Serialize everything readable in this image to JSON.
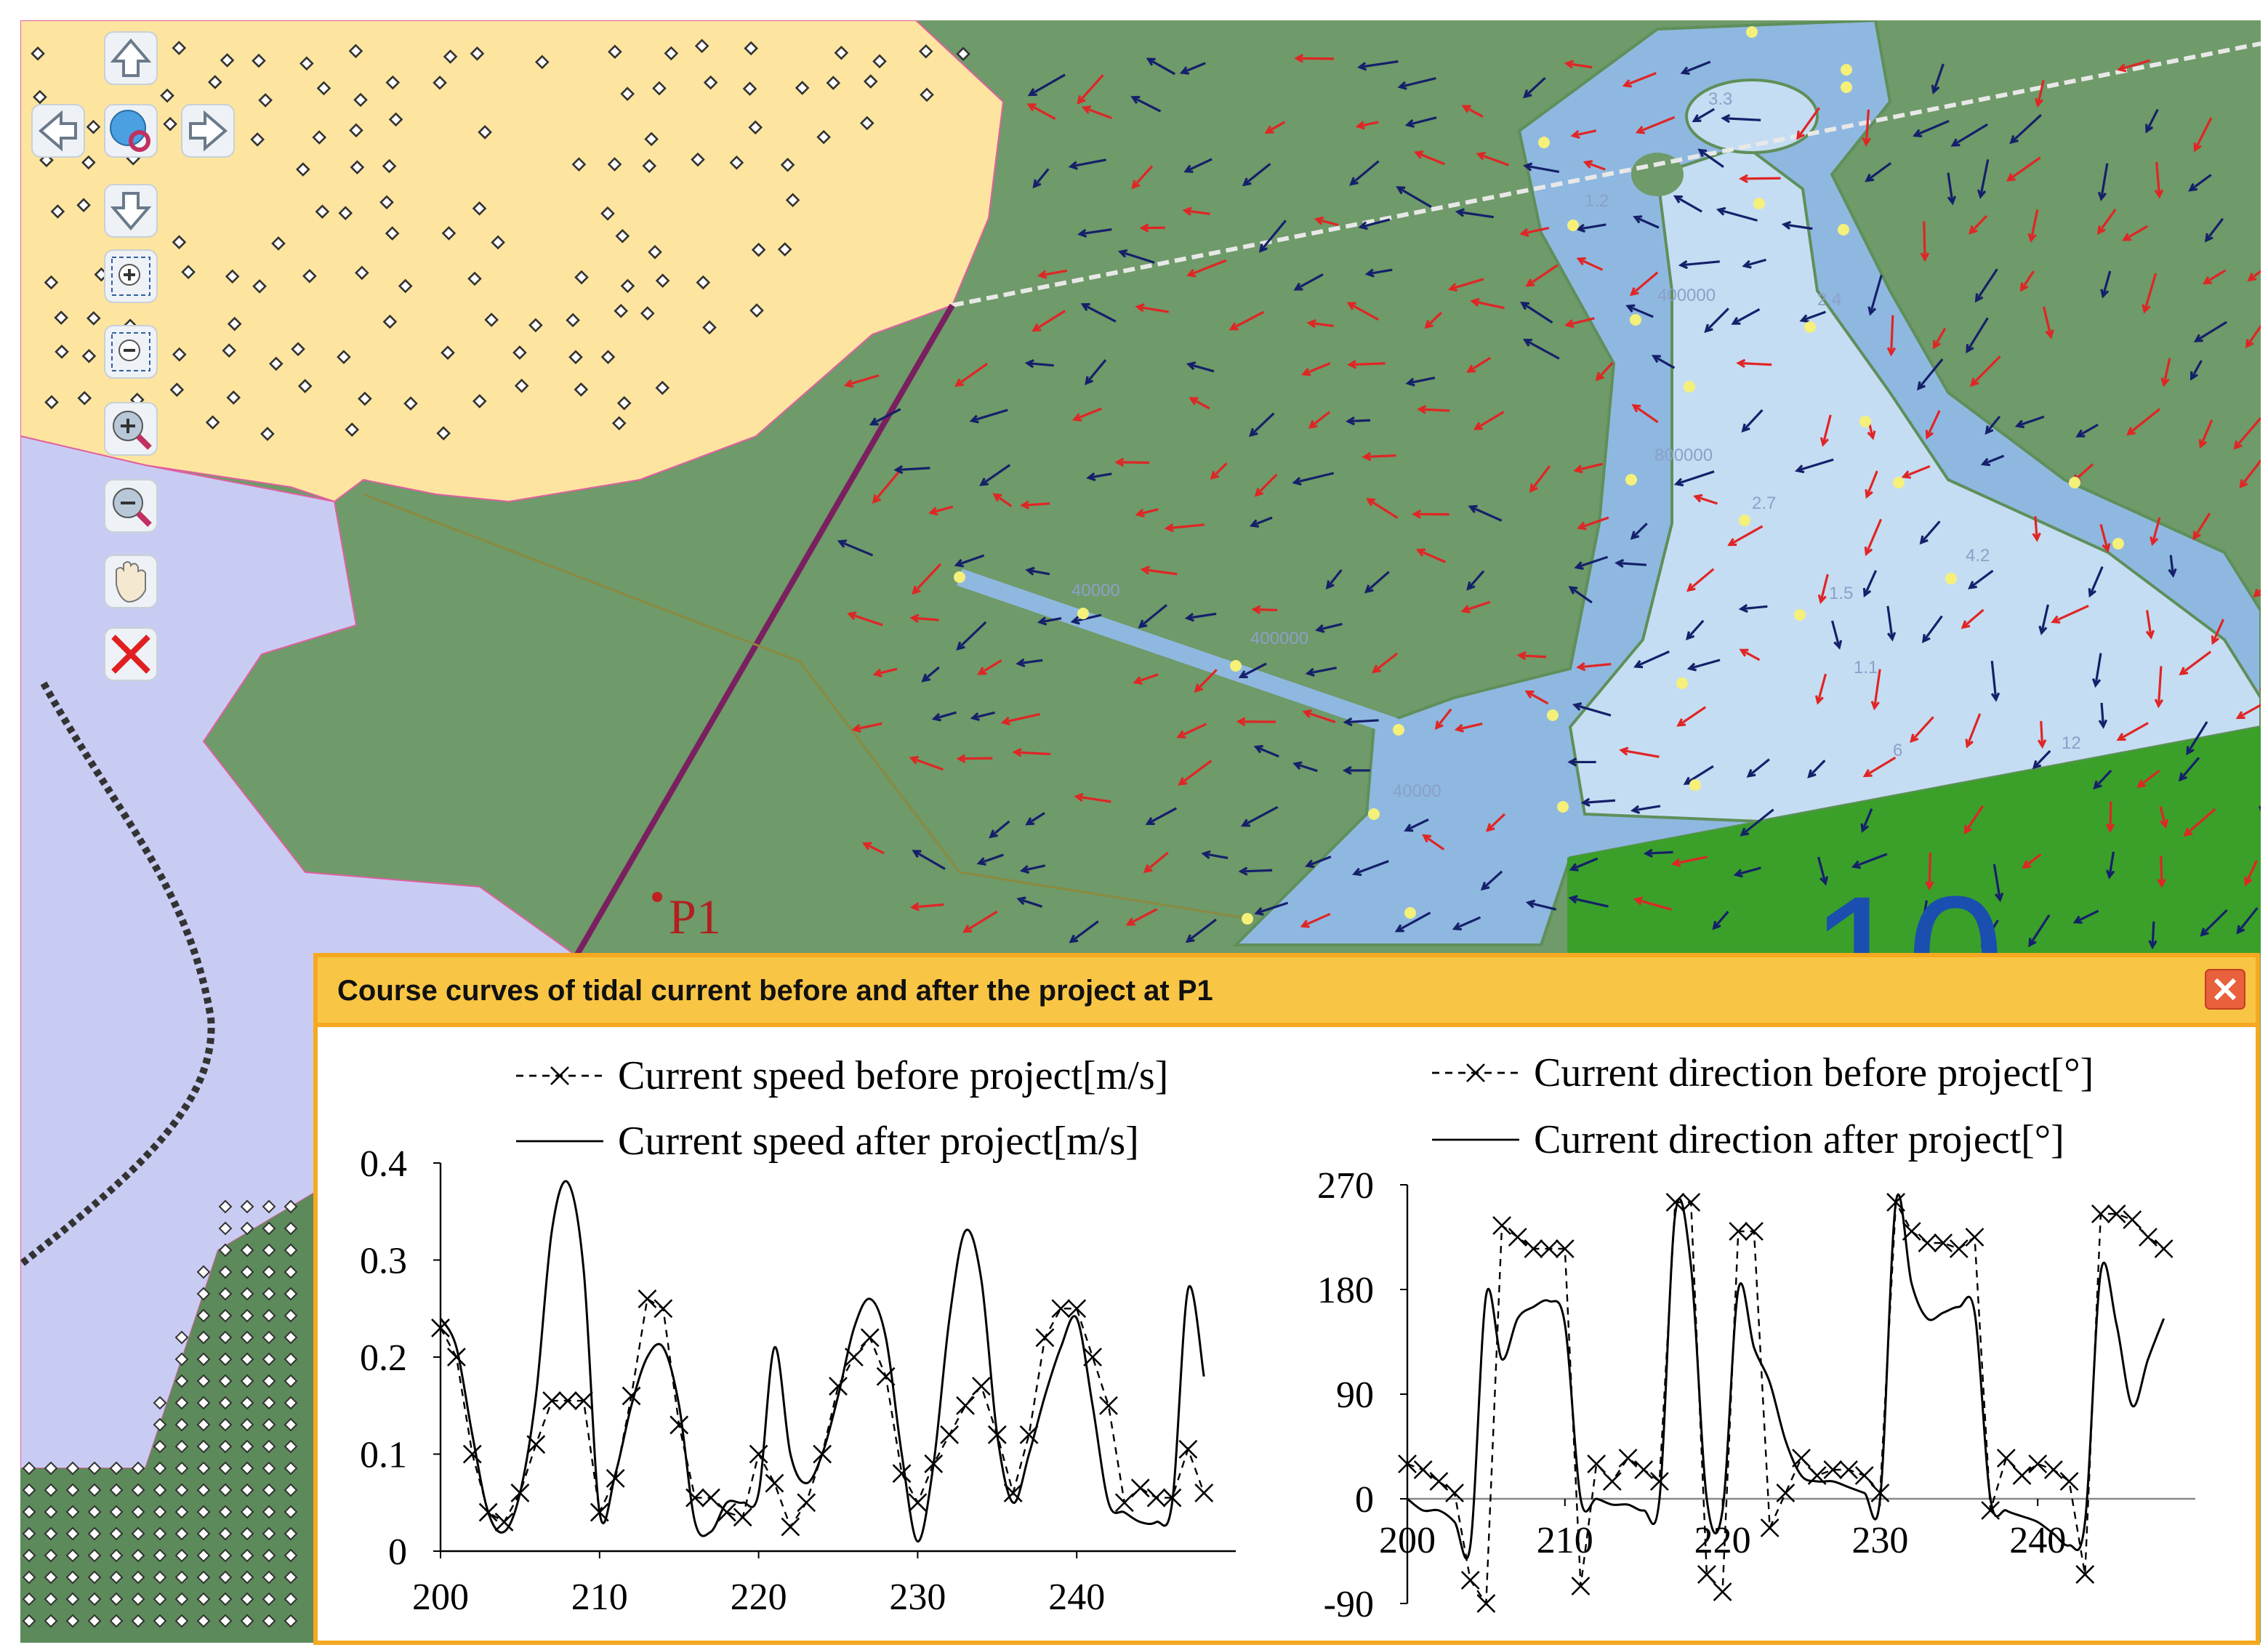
{
  "map": {
    "point_label": "P1",
    "zone_label": "10",
    "depth_labels": [
      "3.3",
      "1.2",
      "400000",
      "2.4",
      "800000",
      "2.7",
      "4.2",
      "1.5",
      "40000",
      "400000",
      "40000",
      "1.1",
      "6",
      "12"
    ]
  },
  "window": {
    "title": "Course curves of tidal current before and after the project at P1"
  },
  "chart_data": [
    {
      "type": "line",
      "x": [
        200,
        201,
        202,
        203,
        204,
        205,
        206,
        207,
        208,
        209,
        210,
        211,
        212,
        213,
        214,
        215,
        216,
        217,
        218,
        219,
        220,
        221,
        222,
        223,
        224,
        225,
        226,
        227,
        228,
        229,
        230,
        231,
        232,
        233,
        234,
        235,
        236,
        237,
        238,
        239,
        240,
        241,
        242,
        243,
        244,
        245,
        246,
        247,
        248
      ],
      "series": [
        {
          "name": "Current speed before project[m/s]",
          "color": "#000000",
          "dashed": true,
          "marker": "x",
          "values": [
            0.23,
            0.2,
            0.1,
            0.04,
            0.03,
            0.06,
            0.11,
            0.155,
            0.155,
            0.155,
            0.04,
            0.075,
            0.16,
            0.26,
            0.25,
            0.13,
            0.055,
            0.055,
            0.04,
            0.035,
            0.1,
            0.07,
            0.025,
            0.05,
            0.1,
            0.17,
            0.2,
            0.22,
            0.18,
            0.08,
            0.05,
            0.09,
            0.12,
            0.15,
            0.17,
            0.12,
            0.06,
            0.12,
            0.22,
            0.25,
            0.25,
            0.2,
            0.15,
            0.05,
            0.065,
            0.055,
            0.055,
            0.105,
            0.06
          ]
        },
        {
          "name": "Current speed after project[m/s]",
          "color": "#000000",
          "dashed": false,
          "marker": "none",
          "values": [
            0.24,
            0.21,
            0.12,
            0.04,
            0.02,
            0.06,
            0.16,
            0.33,
            0.38,
            0.29,
            0.04,
            0.08,
            0.15,
            0.2,
            0.21,
            0.15,
            0.03,
            0.02,
            0.05,
            0.05,
            0.06,
            0.21,
            0.1,
            0.07,
            0.1,
            0.16,
            0.23,
            0.26,
            0.22,
            0.1,
            0.01,
            0.09,
            0.24,
            0.33,
            0.28,
            0.12,
            0.05,
            0.1,
            0.16,
            0.21,
            0.24,
            0.15,
            0.05,
            0.04,
            0.03,
            0.03,
            0.05,
            0.27,
            0.18
          ]
        }
      ],
      "xlim": [
        200,
        250
      ],
      "xticks": [
        200,
        210,
        220,
        230,
        240
      ],
      "ylim": [
        0,
        0.4
      ],
      "yticks": [
        0,
        0.1,
        0.2,
        0.3,
        0.4
      ]
    },
    {
      "type": "line",
      "x": [
        200,
        201,
        202,
        203,
        204,
        205,
        206,
        207,
        208,
        209,
        210,
        211,
        212,
        213,
        214,
        215,
        216,
        217,
        218,
        219,
        220,
        221,
        222,
        223,
        224,
        225,
        226,
        227,
        228,
        229,
        230,
        231,
        232,
        233,
        234,
        235,
        236,
        237,
        238,
        239,
        240,
        241,
        242,
        243,
        244,
        245,
        246,
        247,
        248
      ],
      "series": [
        {
          "name": "Current direction before project[°]",
          "color": "#000000",
          "dashed": true,
          "marker": "x",
          "values": [
            30,
            25,
            15,
            5,
            -70,
            -90,
            235,
            225,
            215,
            215,
            215,
            -75,
            30,
            15,
            35,
            25,
            15,
            255,
            255,
            -65,
            -80,
            230,
            230,
            -25,
            5,
            35,
            20,
            25,
            25,
            20,
            5,
            255,
            230,
            220,
            220,
            215,
            225,
            -10,
            35,
            20,
            30,
            25,
            15,
            -65,
            245,
            245,
            240,
            225,
            215
          ]
        },
        {
          "name": "Current direction after project[°]",
          "color": "#000000",
          "dashed": false,
          "marker": "none",
          "values": [
            0,
            -10,
            -10,
            -20,
            -40,
            175,
            120,
            155,
            165,
            170,
            150,
            0,
            0,
            -5,
            -5,
            -10,
            0,
            245,
            200,
            0,
            -10,
            180,
            130,
            100,
            50,
            20,
            15,
            15,
            10,
            5,
            0,
            255,
            185,
            155,
            160,
            165,
            160,
            0,
            -10,
            -15,
            -20,
            -30,
            -40,
            -20,
            195,
            150,
            80,
            120,
            155
          ]
        }
      ],
      "xlim": [
        200,
        250
      ],
      "xticks": [
        200,
        210,
        220,
        230,
        240
      ],
      "ylim": [
        -90,
        270
      ],
      "yticks": [
        -90,
        0,
        90,
        180,
        270
      ]
    }
  ]
}
